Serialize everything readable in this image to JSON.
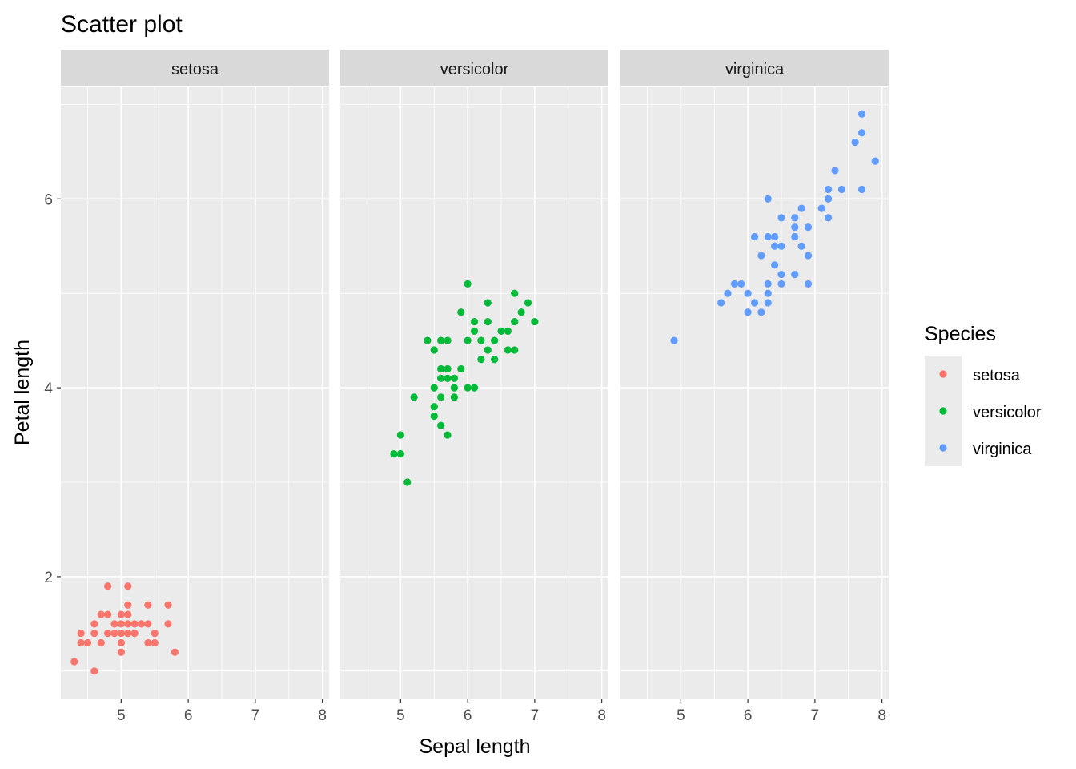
{
  "chart_data": {
    "type": "scatter",
    "title": "Scatter plot",
    "xlabel": "Sepal length",
    "ylabel": "Petal length",
    "xlim": [
      4.1,
      8.1
    ],
    "ylim": [
      0.71,
      7.19
    ],
    "x_ticks": [
      5,
      6,
      7,
      8
    ],
    "y_ticks": [
      2,
      4,
      6
    ],
    "grid": true,
    "legend": {
      "title": "Species",
      "position": "right"
    },
    "facets": [
      "setosa",
      "versicolor",
      "virginica"
    ],
    "series": [
      {
        "name": "setosa",
        "color": "#F8766D",
        "points": [
          [
            4.3,
            1.1
          ],
          [
            4.4,
            1.4
          ],
          [
            4.4,
            1.3
          ],
          [
            4.5,
            1.3
          ],
          [
            4.6,
            1.0
          ],
          [
            4.6,
            1.4
          ],
          [
            4.6,
            1.5
          ],
          [
            4.7,
            1.3
          ],
          [
            4.7,
            1.6
          ],
          [
            4.8,
            1.6
          ],
          [
            4.8,
            1.9
          ],
          [
            4.8,
            1.4
          ],
          [
            4.9,
            1.4
          ],
          [
            4.9,
            1.5
          ],
          [
            5.0,
            1.2
          ],
          [
            5.0,
            1.3
          ],
          [
            5.0,
            1.4
          ],
          [
            5.0,
            1.5
          ],
          [
            5.0,
            1.6
          ],
          [
            5.1,
            1.4
          ],
          [
            5.1,
            1.5
          ],
          [
            5.1,
            1.6
          ],
          [
            5.1,
            1.7
          ],
          [
            5.1,
            1.9
          ],
          [
            5.2,
            1.4
          ],
          [
            5.2,
            1.5
          ],
          [
            5.3,
            1.5
          ],
          [
            5.4,
            1.3
          ],
          [
            5.4,
            1.5
          ],
          [
            5.4,
            1.7
          ],
          [
            5.5,
            1.3
          ],
          [
            5.5,
            1.4
          ],
          [
            5.7,
            1.5
          ],
          [
            5.7,
            1.7
          ],
          [
            5.8,
            1.2
          ]
        ]
      },
      {
        "name": "versicolor",
        "color": "#00BA38",
        "points": [
          [
            4.9,
            3.3
          ],
          [
            5.0,
            3.3
          ],
          [
            5.0,
            3.5
          ],
          [
            5.1,
            3.0
          ],
          [
            5.2,
            3.9
          ],
          [
            5.4,
            4.5
          ],
          [
            5.5,
            3.7
          ],
          [
            5.5,
            3.8
          ],
          [
            5.5,
            4.0
          ],
          [
            5.5,
            4.4
          ],
          [
            5.6,
            3.6
          ],
          [
            5.6,
            3.9
          ],
          [
            5.6,
            4.1
          ],
          [
            5.6,
            4.2
          ],
          [
            5.6,
            4.5
          ],
          [
            5.7,
            3.5
          ],
          [
            5.7,
            4.1
          ],
          [
            5.7,
            4.2
          ],
          [
            5.7,
            4.5
          ],
          [
            5.8,
            3.9
          ],
          [
            5.8,
            4.0
          ],
          [
            5.8,
            4.1
          ],
          [
            5.9,
            4.2
          ],
          [
            5.9,
            4.8
          ],
          [
            6.0,
            4.0
          ],
          [
            6.0,
            4.5
          ],
          [
            6.0,
            5.1
          ],
          [
            6.1,
            4.0
          ],
          [
            6.1,
            4.6
          ],
          [
            6.1,
            4.7
          ],
          [
            6.2,
            4.3
          ],
          [
            6.2,
            4.5
          ],
          [
            6.3,
            4.4
          ],
          [
            6.3,
            4.7
          ],
          [
            6.3,
            4.9
          ],
          [
            6.4,
            4.3
          ],
          [
            6.4,
            4.5
          ],
          [
            6.5,
            4.6
          ],
          [
            6.6,
            4.4
          ],
          [
            6.6,
            4.6
          ],
          [
            6.7,
            4.4
          ],
          [
            6.7,
            4.7
          ],
          [
            6.7,
            5.0
          ],
          [
            6.8,
            4.8
          ],
          [
            6.9,
            4.9
          ],
          [
            7.0,
            4.7
          ]
        ]
      },
      {
        "name": "virginica",
        "color": "#619CFF",
        "points": [
          [
            4.9,
            4.5
          ],
          [
            5.6,
            4.9
          ],
          [
            5.7,
            5.0
          ],
          [
            5.8,
            5.1
          ],
          [
            5.9,
            5.1
          ],
          [
            6.0,
            4.8
          ],
          [
            6.0,
            5.0
          ],
          [
            6.1,
            4.9
          ],
          [
            6.1,
            5.6
          ],
          [
            6.2,
            4.8
          ],
          [
            6.2,
            5.4
          ],
          [
            6.3,
            4.9
          ],
          [
            6.3,
            5.0
          ],
          [
            6.3,
            5.1
          ],
          [
            6.3,
            5.6
          ],
          [
            6.3,
            6.0
          ],
          [
            6.4,
            5.3
          ],
          [
            6.4,
            5.5
          ],
          [
            6.4,
            5.6
          ],
          [
            6.5,
            5.1
          ],
          [
            6.5,
            5.2
          ],
          [
            6.5,
            5.5
          ],
          [
            6.5,
            5.8
          ],
          [
            6.7,
            5.2
          ],
          [
            6.7,
            5.6
          ],
          [
            6.7,
            5.7
          ],
          [
            6.7,
            5.8
          ],
          [
            6.8,
            5.5
          ],
          [
            6.8,
            5.9
          ],
          [
            6.9,
            5.1
          ],
          [
            6.9,
            5.4
          ],
          [
            6.9,
            5.7
          ],
          [
            7.1,
            5.9
          ],
          [
            7.2,
            5.8
          ],
          [
            7.2,
            6.0
          ],
          [
            7.2,
            6.1
          ],
          [
            7.3,
            6.3
          ],
          [
            7.4,
            6.1
          ],
          [
            7.6,
            6.6
          ],
          [
            7.7,
            6.1
          ],
          [
            7.7,
            6.7
          ],
          [
            7.7,
            6.9
          ],
          [
            7.9,
            6.4
          ]
        ]
      }
    ]
  }
}
